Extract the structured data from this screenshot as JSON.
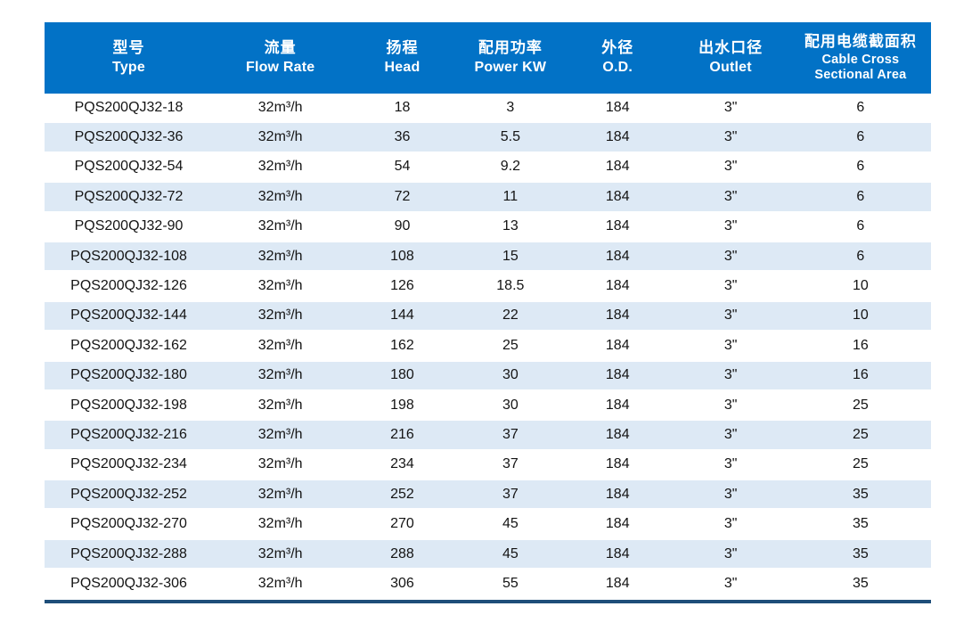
{
  "page": {
    "background_color": "#ffffff"
  },
  "table": {
    "header_bg_color": "#0272c6",
    "header_text_color": "#ffffff",
    "alt_row_color": "#dde9f5",
    "bottom_rule_color": "#1e4e79",
    "columns": [
      {
        "zh": "型号",
        "en": "Type"
      },
      {
        "zh": "流量",
        "en": "Flow Rate"
      },
      {
        "zh": "扬程",
        "en": "Head"
      },
      {
        "zh": "配用功率",
        "en": "Power KW"
      },
      {
        "zh": "外径",
        "en": "O.D."
      },
      {
        "zh": "出水口径",
        "en": "Outlet"
      },
      {
        "zh": "配用电缆截面积",
        "en": "Cable Cross Sectional Area",
        "en_lines": [
          "Cable Cross",
          "Sectional Area"
        ]
      }
    ],
    "rows": [
      [
        "PQS200QJ32-18",
        "32m³/h",
        "18",
        "3",
        "184",
        "3\"",
        "6"
      ],
      [
        "PQS200QJ32-36",
        "32m³/h",
        "36",
        "5.5",
        "184",
        "3\"",
        "6"
      ],
      [
        "PQS200QJ32-54",
        "32m³/h",
        "54",
        "9.2",
        "184",
        "3\"",
        "6"
      ],
      [
        "PQS200QJ32-72",
        "32m³/h",
        "72",
        "11",
        "184",
        "3\"",
        "6"
      ],
      [
        "PQS200QJ32-90",
        "32m³/h",
        "90",
        "13",
        "184",
        "3\"",
        "6"
      ],
      [
        "PQS200QJ32-108",
        "32m³/h",
        "108",
        "15",
        "184",
        "3\"",
        "6"
      ],
      [
        "PQS200QJ32-126",
        "32m³/h",
        "126",
        "18.5",
        "184",
        "3\"",
        "10"
      ],
      [
        "PQS200QJ32-144",
        "32m³/h",
        "144",
        "22",
        "184",
        "3\"",
        "10"
      ],
      [
        "PQS200QJ32-162",
        "32m³/h",
        "162",
        "25",
        "184",
        "3\"",
        "16"
      ],
      [
        "PQS200QJ32-180",
        "32m³/h",
        "180",
        "30",
        "184",
        "3\"",
        "16"
      ],
      [
        "PQS200QJ32-198",
        "32m³/h",
        "198",
        "30",
        "184",
        "3\"",
        "25"
      ],
      [
        "PQS200QJ32-216",
        "32m³/h",
        "216",
        "37",
        "184",
        "3\"",
        "25"
      ],
      [
        "PQS200QJ32-234",
        "32m³/h",
        "234",
        "37",
        "184",
        "3\"",
        "25"
      ],
      [
        "PQS200QJ32-252",
        "32m³/h",
        "252",
        "37",
        "184",
        "3\"",
        "35"
      ],
      [
        "PQS200QJ32-270",
        "32m³/h",
        "270",
        "45",
        "184",
        "3\"",
        "35"
      ],
      [
        "PQS200QJ32-288",
        "32m³/h",
        "288",
        "45",
        "184",
        "3\"",
        "35"
      ],
      [
        "PQS200QJ32-306",
        "32m³/h",
        "306",
        "55",
        "184",
        "3\"",
        "35"
      ]
    ]
  }
}
